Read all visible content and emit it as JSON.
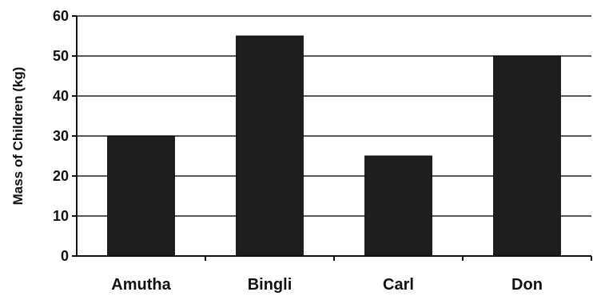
{
  "chart_data": {
    "type": "bar",
    "categories": [
      "Amutha",
      "Bingli",
      "Carl",
      "Don"
    ],
    "values": [
      30,
      55,
      25,
      50
    ],
    "ylabel": "Mass of Children (kg)",
    "xlabel": "",
    "ylim": [
      0,
      60
    ],
    "yticks": [
      0,
      10,
      20,
      30,
      40,
      50,
      60
    ],
    "grid": true,
    "bar_color": "#1e1e1e"
  }
}
